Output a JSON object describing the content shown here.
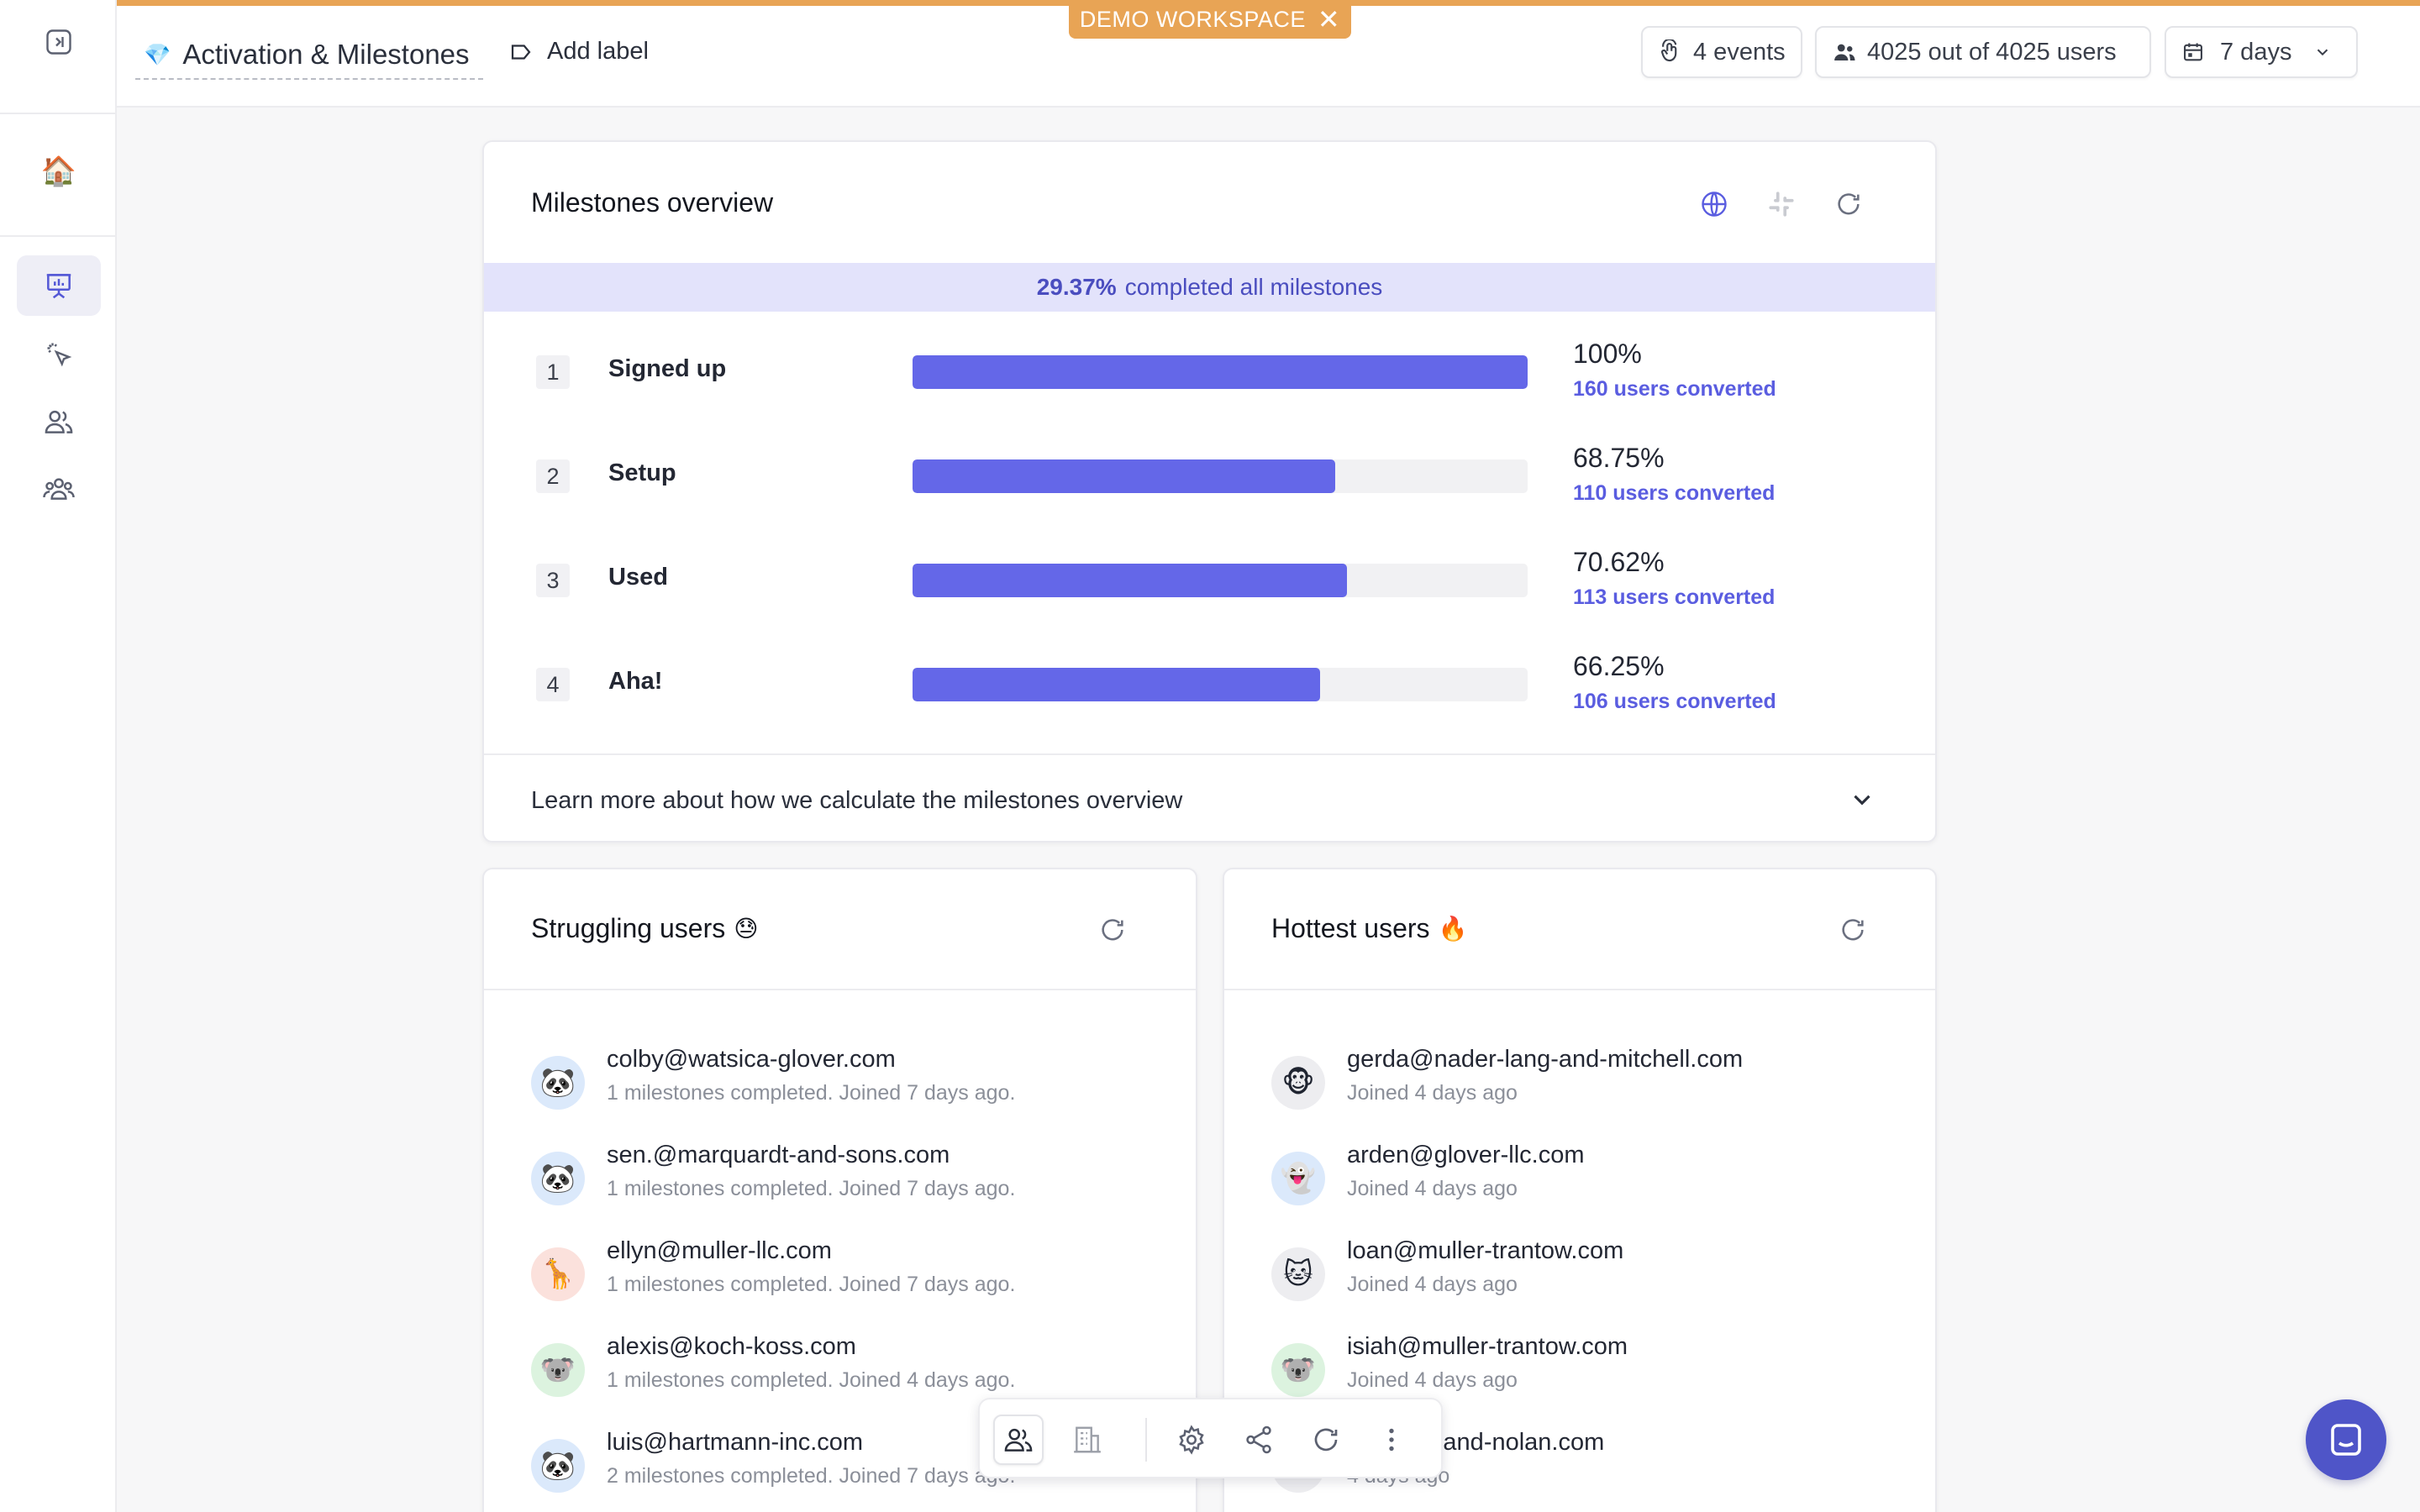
{
  "workspace_badge": {
    "label": "DEMO WORKSPACE",
    "close": "✕"
  },
  "header": {
    "title_emoji": "💎",
    "title": "Activation & Milestones",
    "add_label": "Add label",
    "events": "4 events",
    "users": "4025 out of 4025 users",
    "range": "7 days"
  },
  "sidebar": {
    "items": [
      {
        "name": "collapse",
        "icon": "collapse-sidebar-icon"
      },
      {
        "name": "home",
        "icon": "home-emoji",
        "emoji": "🏠"
      },
      {
        "name": "dashboards",
        "icon": "presentation-chart-icon",
        "active": true
      },
      {
        "name": "events",
        "icon": "cursor-click-icon"
      },
      {
        "name": "users",
        "icon": "users-icon"
      },
      {
        "name": "accounts",
        "icon": "team-icon"
      }
    ]
  },
  "milestones": {
    "title": "Milestones overview",
    "completed_pct": "29.37%",
    "completed_text": "completed all milestones",
    "items": [
      {
        "num": "1",
        "name": "Signed up",
        "pct": "100%",
        "fraction": 1.0,
        "converted": "160 users converted"
      },
      {
        "num": "2",
        "name": "Setup",
        "pct": "68.75%",
        "fraction": 0.6875,
        "converted": "110 users converted"
      },
      {
        "num": "3",
        "name": "Used",
        "pct": "70.62%",
        "fraction": 0.7062,
        "converted": "113 users converted"
      },
      {
        "num": "4",
        "name": "Aha!",
        "pct": "66.25%",
        "fraction": 0.6625,
        "converted": "106 users converted"
      }
    ],
    "learn_more": "Learn more about how we calculate the milestones overview"
  },
  "struggling": {
    "title": "Struggling users",
    "emoji": "😓",
    "users": [
      {
        "email": "colby@watsica-glover.com",
        "sub": "1 milestones completed. Joined 7 days ago.",
        "avatar": "🐼",
        "bg": "#dbe9fb"
      },
      {
        "email": "sen.@marquardt-and-sons.com",
        "sub": "1 milestones completed. Joined 7 days ago.",
        "avatar": "🐼",
        "bg": "#dbe9fb"
      },
      {
        "email": "ellyn@muller-llc.com",
        "sub": "1 milestones completed. Joined 7 days ago.",
        "avatar": "🦒",
        "bg": "#fbe1dc"
      },
      {
        "email": "alexis@koch-koss.com",
        "sub": "1 milestones completed. Joined 4 days ago.",
        "avatar": "🐨",
        "bg": "#dcf3df"
      },
      {
        "email": "luis@hartmann-inc.com",
        "sub": "2 milestones completed. Joined 7 days ago.",
        "avatar": "🐼",
        "bg": "#dbe9fb"
      }
    ]
  },
  "hottest": {
    "title": "Hottest users",
    "emoji": "🔥",
    "users": [
      {
        "email": "gerda@nader-lang-and-mitchell.com",
        "sub": "Joined 4 days ago",
        "avatar": "🐵",
        "bg": "#ededf0"
      },
      {
        "email": "arden@glover-llc.com",
        "sub": "Joined 4 days ago",
        "avatar": "👻",
        "bg": "#dbe9fb"
      },
      {
        "email": "loan@muller-trantow.com",
        "sub": "Joined 4 days ago",
        "avatar": "🐱",
        "bg": "#ededf0"
      },
      {
        "email": "isiah@muller-trantow.com",
        "sub": "Joined 4 days ago",
        "avatar": "🐨",
        "bg": "#dcf3df"
      },
      {
        "email": "on-ward-and-nolan.com",
        "sub": "4 days ago",
        "avatar": "",
        "bg": "#ededf0"
      }
    ]
  },
  "colors": {
    "accent": "#6467e8",
    "badge": "#e8a455",
    "link": "#5a5de0",
    "chat": "#4f55c8"
  }
}
